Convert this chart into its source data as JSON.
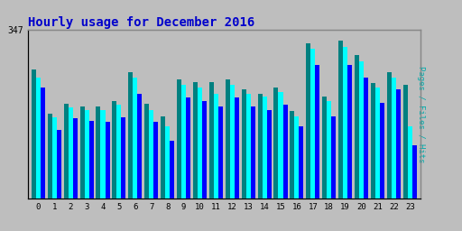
{
  "title": "Hourly usage for December 2016",
  "title_color": "#0000cc",
  "title_fontsize": 10,
  "background_color": "#bebebe",
  "plot_bg_color": "#bebebe",
  "ylabel_right": "Pages / Files / Hits",
  "ylabel_right_color": "#00aaaa",
  "ytick_label": "347",
  "hours": [
    0,
    1,
    2,
    3,
    4,
    5,
    6,
    7,
    8,
    9,
    10,
    11,
    12,
    13,
    14,
    15,
    16,
    17,
    18,
    19,
    20,
    21,
    22,
    23
  ],
  "pages": [
    265,
    175,
    195,
    190,
    190,
    200,
    260,
    195,
    170,
    245,
    240,
    240,
    245,
    225,
    215,
    228,
    180,
    320,
    210,
    325,
    295,
    238,
    260,
    235
  ],
  "files": [
    250,
    168,
    188,
    183,
    183,
    193,
    250,
    183,
    148,
    235,
    228,
    215,
    235,
    215,
    210,
    220,
    170,
    308,
    200,
    312,
    282,
    228,
    250,
    148
  ],
  "hits": [
    228,
    142,
    165,
    160,
    158,
    168,
    215,
    158,
    120,
    208,
    200,
    190,
    208,
    190,
    183,
    193,
    148,
    275,
    170,
    275,
    250,
    198,
    225,
    110
  ],
  "pages_color": "#008080",
  "files_color": "#00ffff",
  "hits_color": "#0000ff",
  "bar_width": 0.28,
  "ylim": [
    0,
    347
  ],
  "yticks": [
    347
  ],
  "grid_color": "#aaaaaa",
  "border_color": "#888888"
}
